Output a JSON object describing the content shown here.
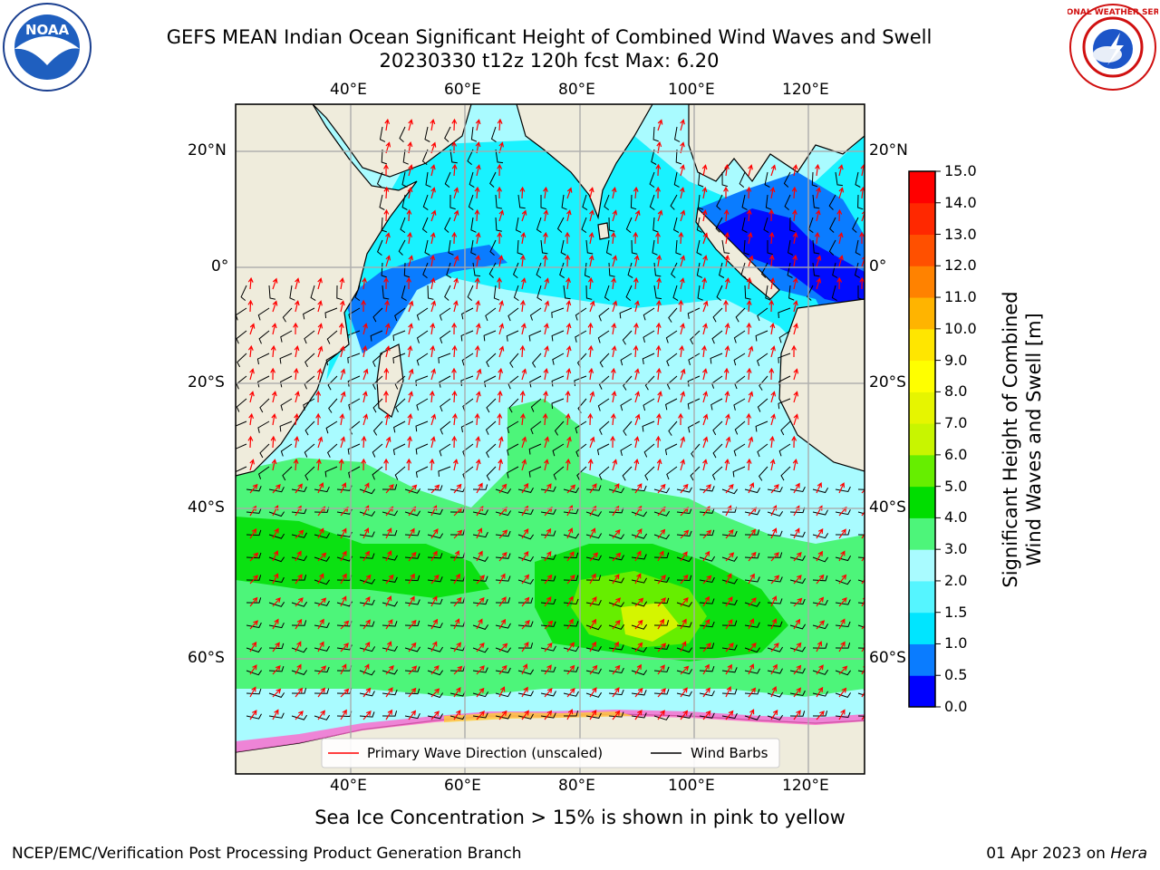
{
  "header": {
    "title_line1": "GEFS MEAN Indian Ocean Significant Height of Combined Wind Waves and Swell",
    "title_line2": "20230330 t12z 120h fcst   Max: 6.20"
  },
  "logos": {
    "noaa": {
      "text": "NOAA",
      "icon": "noaa-logo"
    },
    "nws": {
      "text": "NATIONAL WEATHER SERVICE",
      "icon": "nws-logo"
    }
  },
  "map": {
    "lon_labels": [
      "40°E",
      "60°E",
      "80°E",
      "100°E",
      "120°E"
    ],
    "lat_labels": [
      "20°N",
      "0°",
      "20°S",
      "40°S",
      "60°S"
    ],
    "legend": {
      "wave_direction": "Primary Wave Direction (unscaled)",
      "wind_barbs": "Wind Barbs"
    },
    "note": "Sea Ice Concentration > 15% is shown in pink to yellow"
  },
  "colorbar": {
    "label_line1": "Significant Height of Combined",
    "label_line2": "Wind Waves and Swell [m]",
    "ticks": [
      "0.0",
      "0.5",
      "1.0",
      "1.5",
      "2.0",
      "3.0",
      "4.0",
      "5.0",
      "6.0",
      "7.0",
      "8.0",
      "9.0",
      "10.0",
      "11.0",
      "12.0",
      "13.0",
      "14.0",
      "15.0"
    ],
    "colors": [
      "#0000ff",
      "#0a7cff",
      "#00e5ff",
      "#55f5ff",
      "#a9fbff",
      "#4df57a",
      "#00dd00",
      "#66ee00",
      "#c8f500",
      "#e6f500",
      "#ffff00",
      "#ffe600",
      "#ffb400",
      "#ff8200",
      "#ff5000",
      "#ff2800",
      "#ff0000"
    ]
  },
  "footer": {
    "left": "NCEP/EMC/Verification Post Processing Product Generation Branch",
    "right_date": "01 Apr 2023 on ",
    "right_host": "Hera"
  }
}
